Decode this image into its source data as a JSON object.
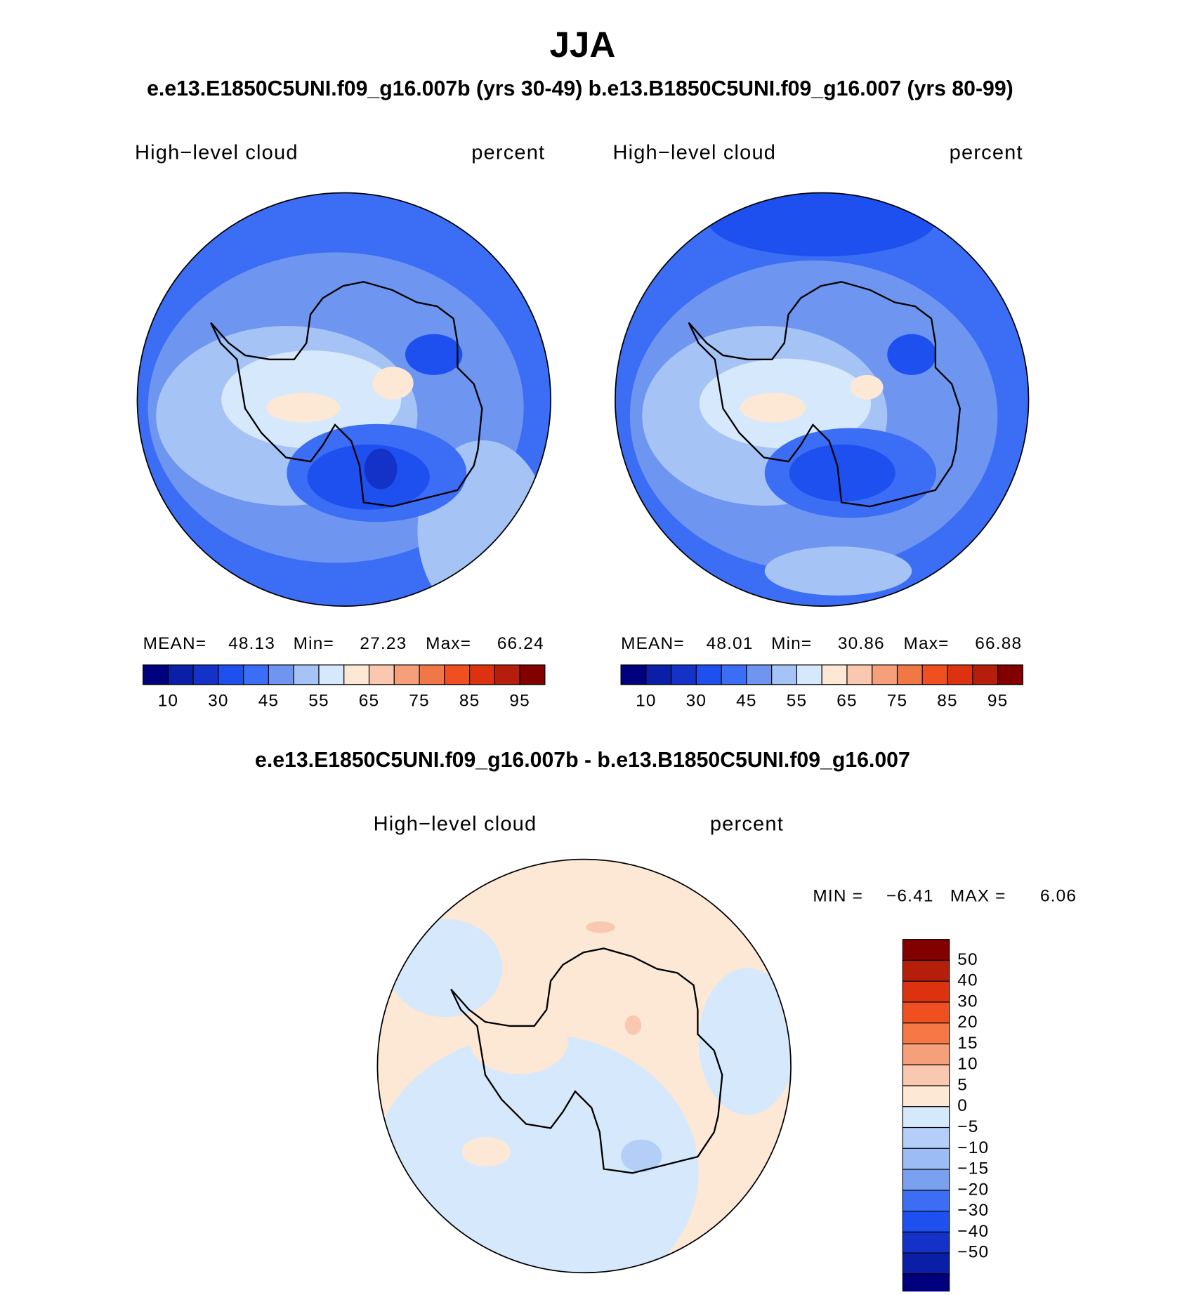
{
  "title": "JJA",
  "subtitle": "e.e13.E1850C5UNI.f09_g16.007b (yrs 30-49)  b.e13.B1850C5UNI.f09_g16.007 (yrs 80-99)",
  "panels": [
    {
      "left_label": "High−level cloud",
      "right_label": "percent",
      "stats": [
        {
          "label": "MEAN=",
          "value": "48.13"
        },
        {
          "label": "Min=",
          "value": "27.23"
        },
        {
          "label": "Max=",
          "value": "66.24"
        }
      ]
    },
    {
      "left_label": "High−level cloud",
      "right_label": "percent",
      "stats": [
        {
          "label": "MEAN=",
          "value": "48.01"
        },
        {
          "label": "Min=",
          "value": "30.86"
        },
        {
          "label": "Max=",
          "value": "66.88"
        }
      ]
    }
  ],
  "colorbar": {
    "colors": [
      "#00007f",
      "#0a1ea8",
      "#1432c8",
      "#1e50f0",
      "#3c6ef5",
      "#6e96f0",
      "#a5c3f5",
      "#d6e8fb",
      "#fde8d6",
      "#fac8b0",
      "#f5a07a",
      "#f07846",
      "#f05020",
      "#dc320f",
      "#b41e0a",
      "#820000"
    ],
    "labels": [
      "10",
      "30",
      "45",
      "55",
      "65",
      "75",
      "85",
      "95"
    ]
  },
  "difference": {
    "title": "e.e13.E1850C5UNI.f09_g16.007b - b.e13.B1850C5UNI.f09_g16.007",
    "left_label": "High−level cloud",
    "right_label": "percent",
    "stats": [
      {
        "label": "MIN =",
        "value": "−6.41"
      },
      {
        "label": "MAX =",
        "value": "6.06"
      }
    ],
    "colorbar": {
      "colors": [
        "#820000",
        "#b41e0a",
        "#dc320f",
        "#f05020",
        "#f57846",
        "#f5a07a",
        "#fac8b0",
        "#fde8d6",
        "#d6e8fb",
        "#b4cef8",
        "#9bbcf5",
        "#7aa0f0",
        "#3c6ef5",
        "#1e50f0",
        "#1432c8",
        "#0a1ea8",
        "#00007f"
      ],
      "labels": [
        "50",
        "40",
        "30",
        "20",
        "15",
        "10",
        "5",
        "0",
        "−5",
        "−10",
        "−15",
        "−20",
        "−30",
        "−40",
        "−50"
      ]
    }
  }
}
